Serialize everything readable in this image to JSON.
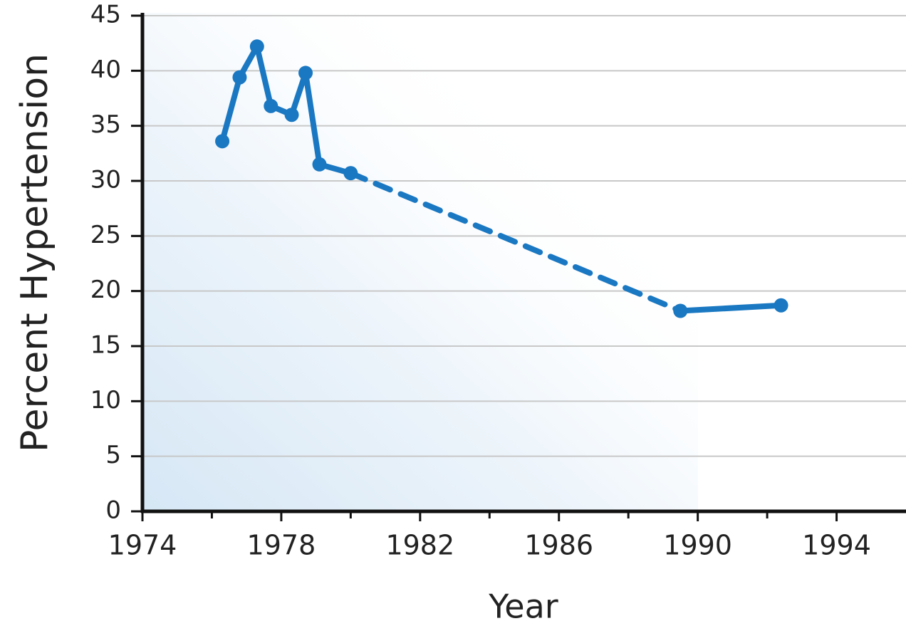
{
  "chart_data": {
    "type": "line",
    "x_label": "Year",
    "y_label": "Percent Hypertension",
    "x": [
      1976.3,
      1976.8,
      1977.3,
      1977.7,
      1978.3,
      1978.7,
      1979.1,
      1980.0,
      1989.5,
      1992.4
    ],
    "values": [
      33.6,
      39.4,
      42.2,
      36.8,
      36.0,
      39.8,
      31.5,
      30.7,
      18.2,
      18.7
    ],
    "color": "#1a78c2",
    "segment_styles": [
      "solid",
      "solid",
      "solid",
      "solid",
      "solid",
      "solid",
      "solid",
      "dashed",
      "solid"
    ],
    "xlim": [
      1974,
      1996
    ],
    "xticks": [
      1974,
      1978,
      1982,
      1986,
      1990,
      1994
    ],
    "xminor_ticks": [
      1976,
      1980,
      1984,
      1988,
      1992
    ],
    "ylim": [
      0,
      45
    ],
    "yticks": [
      0,
      5,
      10,
      15,
      20,
      25,
      30,
      35,
      40,
      45
    ],
    "grid": true
  }
}
